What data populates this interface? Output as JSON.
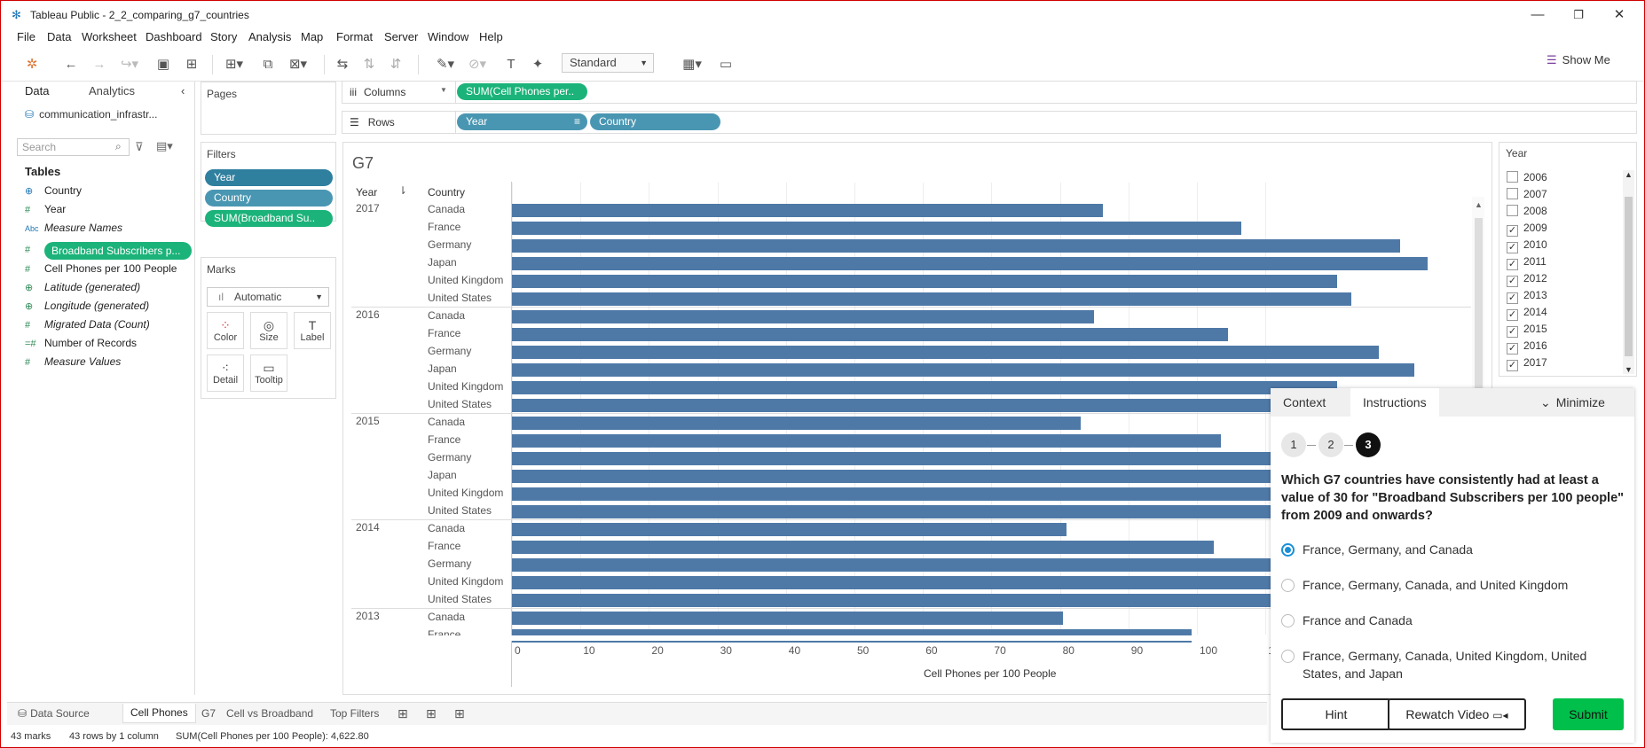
{
  "window": {
    "title": "Tableau Public - 2_2_comparing_g7_countries"
  },
  "menu": [
    "File",
    "Data",
    "Worksheet",
    "Dashboard",
    "Story",
    "Analysis",
    "Map",
    "Format",
    "Server",
    "Window",
    "Help"
  ],
  "toolbar": {
    "fit": "Standard",
    "show_me": "Show Me"
  },
  "data_pane": {
    "tab_data": "Data",
    "tab_analytics": "Analytics",
    "datasource": "communication_infrastr...",
    "search_placeholder": "Search",
    "tables_heading": "Tables",
    "fields": [
      {
        "icon": "⊕",
        "label": "Country"
      },
      {
        "icon": "#",
        "label": "Year"
      },
      {
        "icon": "Abc",
        "label": "Measure Names"
      },
      {
        "icon": "#",
        "label": "Broadband Subscribers p..."
      },
      {
        "icon": "#",
        "label": "Cell Phones per 100 People"
      },
      {
        "icon": "⊕",
        "label": "Latitude (generated)"
      },
      {
        "icon": "⊕",
        "label": "Longitude (generated)"
      },
      {
        "icon": "#",
        "label": "Migrated Data (Count)"
      },
      {
        "icon": "=#",
        "label": "Number of Records"
      },
      {
        "icon": "#",
        "label": "Measure Values"
      }
    ]
  },
  "pages": {
    "title": "Pages"
  },
  "filters": {
    "title": "Filters",
    "pills": [
      "Year",
      "Country",
      "SUM(Broadband Su.."
    ]
  },
  "marks": {
    "title": "Marks",
    "type": "Automatic",
    "buttons": [
      "Color",
      "Size",
      "Label",
      "Detail",
      "Tooltip"
    ]
  },
  "shelves": {
    "columns_label": "Columns",
    "columns_pill": "SUM(Cell Phones per..",
    "rows_label": "Rows",
    "rows_pills": [
      "Year",
      "Country"
    ]
  },
  "viz": {
    "title": "G7",
    "col_year": "Year",
    "col_country": "Country",
    "axis_title": "Cell Phones per 100 People"
  },
  "chart_data": {
    "type": "bar",
    "title": "G7",
    "xlabel": "Cell Phones per 100 People",
    "ylabel": "",
    "xlim": [
      0,
      135
    ],
    "ticks": [
      "0",
      "10",
      "20",
      "30",
      "40",
      "50",
      "60",
      "70",
      "80",
      "90",
      "100",
      "110"
    ],
    "groups": [
      {
        "year": "2017",
        "rows": [
          {
            "country": "Canada",
            "value": 86.3
          },
          {
            "country": "France",
            "value": 106.5
          },
          {
            "country": "Germany",
            "value": 129.6
          },
          {
            "country": "Japan",
            "value": 133.7
          },
          {
            "country": "United Kingdom",
            "value": 120.5
          },
          {
            "country": "United States",
            "value": 122.5
          }
        ]
      },
      {
        "year": "2016",
        "rows": [
          {
            "country": "Canada",
            "value": 85.0
          },
          {
            "country": "France",
            "value": 104.5
          },
          {
            "country": "Germany",
            "value": 126.5
          },
          {
            "country": "Japan",
            "value": 131.7
          },
          {
            "country": "United Kingdom",
            "value": 120.5
          },
          {
            "country": "United States",
            "value": 123.0
          }
        ]
      },
      {
        "year": "2015",
        "rows": [
          {
            "country": "Canada",
            "value": 83.0
          },
          {
            "country": "France",
            "value": 103.5
          },
          {
            "country": "Germany",
            "value": 116.0
          },
          {
            "country": "Japan",
            "value": 126.0
          },
          {
            "country": "United Kingdom",
            "value": 123.0
          },
          {
            "country": "United States",
            "value": 118.0
          }
        ]
      },
      {
        "year": "2014",
        "rows": [
          {
            "country": "Canada",
            "value": 81.0
          },
          {
            "country": "France",
            "value": 102.5
          },
          {
            "country": "Germany",
            "value": 120.0
          },
          {
            "country": "United Kingdom",
            "value": 123.0
          },
          {
            "country": "United States",
            "value": 113.0
          }
        ]
      },
      {
        "year": "2013",
        "rows": [
          {
            "country": "Canada",
            "value": 80.5
          },
          {
            "country": "France",
            "value": 99.2
          }
        ]
      }
    ]
  },
  "year_filter": {
    "title": "Year",
    "items": [
      {
        "year": "2006",
        "checked": false
      },
      {
        "year": "2007",
        "checked": false
      },
      {
        "year": "2008",
        "checked": false
      },
      {
        "year": "2009",
        "checked": true
      },
      {
        "year": "2010",
        "checked": true
      },
      {
        "year": "2011",
        "checked": true
      },
      {
        "year": "2012",
        "checked": true
      },
      {
        "year": "2013",
        "checked": true
      },
      {
        "year": "2014",
        "checked": true
      },
      {
        "year": "2015",
        "checked": true
      },
      {
        "year": "2016",
        "checked": true
      },
      {
        "year": "2017",
        "checked": true
      }
    ]
  },
  "question_panel": {
    "tab_context": "Context",
    "tab_instructions": "Instructions",
    "minimize": "Minimize",
    "steps": [
      "1",
      "2",
      "3"
    ],
    "question": "Which G7 countries have consistently had at least a value of 30 for \"Broadband Subscribers per 100 people\" from 2009 and onwards?",
    "options": [
      {
        "label": "France, Germany, and Canada",
        "selected": true
      },
      {
        "label": "France, Germany, Canada, and United Kingdom",
        "selected": false
      },
      {
        "label": "France and Canada",
        "selected": false
      },
      {
        "label": "France, Germany, Canada, United Kingdom, United States, and Japan",
        "selected": false
      }
    ],
    "hint": "Hint",
    "rewatch": "Rewatch Video",
    "submit": "Submit"
  },
  "sheet_tabs": [
    "Data Source",
    "Cell Phones",
    "G7",
    "Cell vs Broadband",
    "Top Filters"
  ],
  "status": {
    "marks": "43 marks",
    "rows": "43 rows by 1 column",
    "sum": "SUM(Cell Phones per 100 People): 4,622.80"
  }
}
